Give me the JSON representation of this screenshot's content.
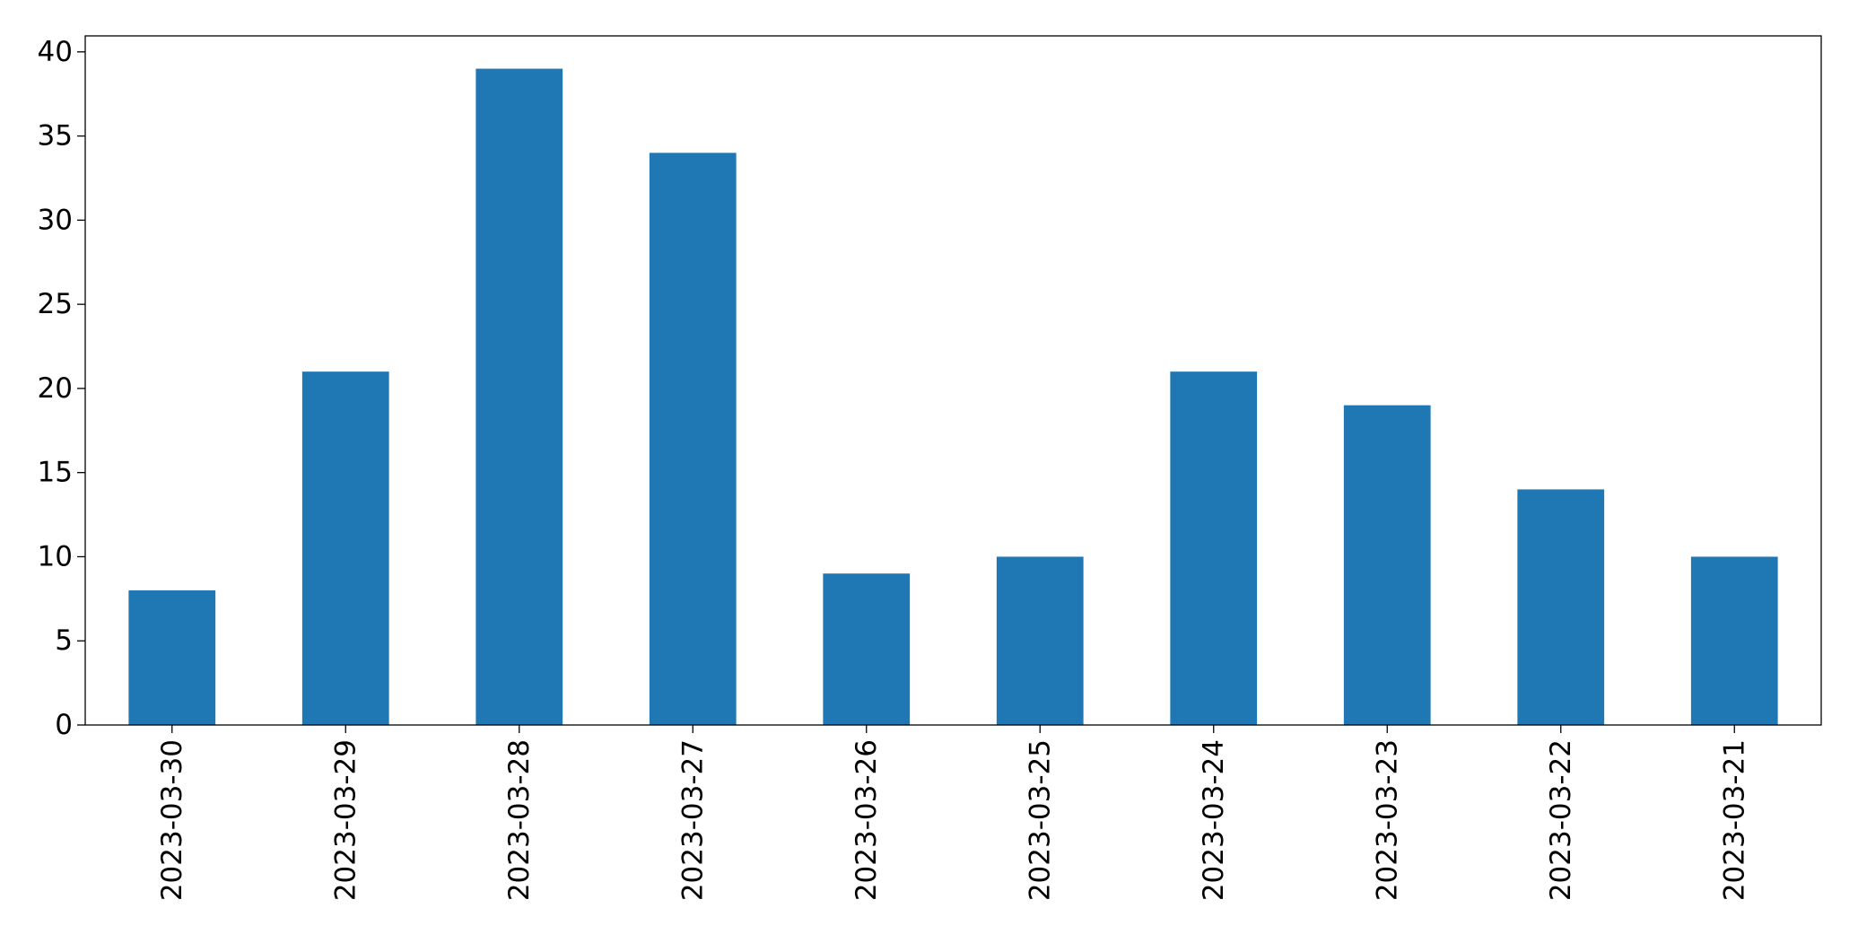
{
  "chart_data": {
    "type": "bar",
    "categories": [
      "2023-03-30",
      "2023-03-29",
      "2023-03-28",
      "2023-03-27",
      "2023-03-26",
      "2023-03-25",
      "2023-03-24",
      "2023-03-23",
      "2023-03-22",
      "2023-03-21"
    ],
    "values": [
      8,
      21,
      39,
      34,
      9,
      10,
      21,
      19,
      14,
      10
    ],
    "color": "#1f77b4",
    "ylim": [
      0,
      40.95
    ],
    "yticks": [
      0,
      5,
      10,
      15,
      20,
      25,
      30,
      35,
      40
    ],
    "grid": false
  }
}
